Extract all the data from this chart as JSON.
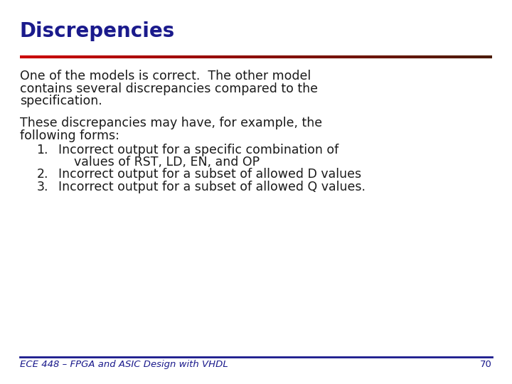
{
  "title": "Discrepencies",
  "title_color": "#1a1a8c",
  "title_fontsize": 20,
  "bg_color": "#ffffff",
  "separator_color_left": "#cc0000",
  "separator_color_right": "#4a1a00",
  "body_text_color": "#1a1a1a",
  "body_fontsize": 12.5,
  "paragraph1_lines": [
    "One of the models is correct.  The other model",
    "contains several discrepancies compared to the",
    "specification."
  ],
  "paragraph2_lines": [
    "These discrepancies may have, for example, the",
    "following forms:"
  ],
  "list_items": [
    [
      "Incorrect output for a specific combination of",
      "    values of RST, LD, EN, and OP"
    ],
    [
      "Incorrect output for a subset of allowed D values"
    ],
    [
      "Incorrect output for a subset of allowed Q values."
    ]
  ],
  "footer_text": "ECE 448 – FPGA and ASIC Design with VHDL",
  "footer_page": "70",
  "footer_color": "#1a1a8c",
  "footer_fontsize": 9.5,
  "footer_line_color": "#1a1a8c"
}
